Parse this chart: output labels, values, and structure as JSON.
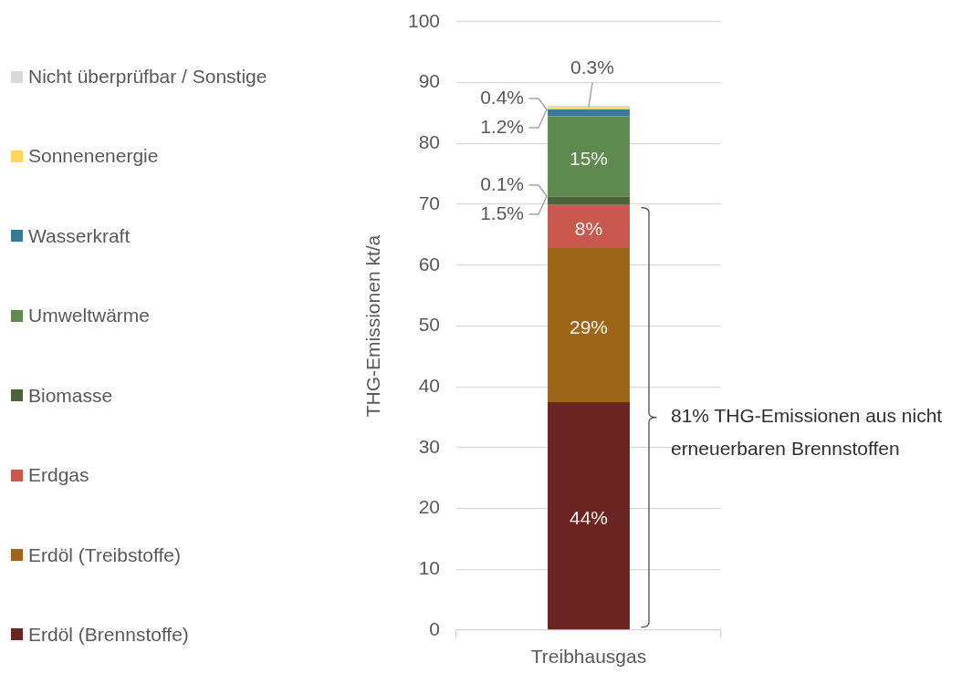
{
  "chart_data": {
    "type": "bar",
    "stacked": true,
    "ylabel": "THG-Emissionen kt/a",
    "categories": [
      "Treibhausgas"
    ],
    "series": [
      {
        "name": "Erdöl (Brennstoffe)",
        "color": "#6a2422",
        "values": [
          37.5
        ]
      },
      {
        "name": "Erdöl (Treibstoffe)",
        "color": "#9c6619",
        "values": [
          25.3
        ]
      },
      {
        "name": "Erdgas",
        "color": "#c9584e",
        "values": [
          7.1
        ]
      },
      {
        "name": "Biomasse",
        "color": "#4a633a",
        "values": [
          1.4
        ]
      },
      {
        "name": "Umweltwärme",
        "color": "#5f8a4f",
        "values": [
          13.2
        ]
      },
      {
        "name": "Wasserkraft",
        "color": "#3a7a99",
        "values": [
          1.1
        ]
      },
      {
        "name": "Sonnenenergie",
        "color": "#ffd75e",
        "values": [
          0.3
        ]
      },
      {
        "name": "Nicht überprüfbar / Sonstige",
        "color": "#d9d9d9",
        "values": [
          0.3
        ]
      }
    ],
    "ylim": [
      0,
      100
    ],
    "yticks": [
      0,
      10,
      20,
      30,
      40,
      50,
      60,
      70,
      80,
      90,
      100
    ],
    "grid": "y",
    "legend": "left",
    "annotations": [
      "44%",
      "29%",
      "8%",
      "0.1%",
      "1.5%",
      "15%",
      "0.4%",
      "1.2%",
      "0.3%",
      "81% THG-Emissionen aus nicht erneuerbaren Brennstoffen"
    ]
  }
}
